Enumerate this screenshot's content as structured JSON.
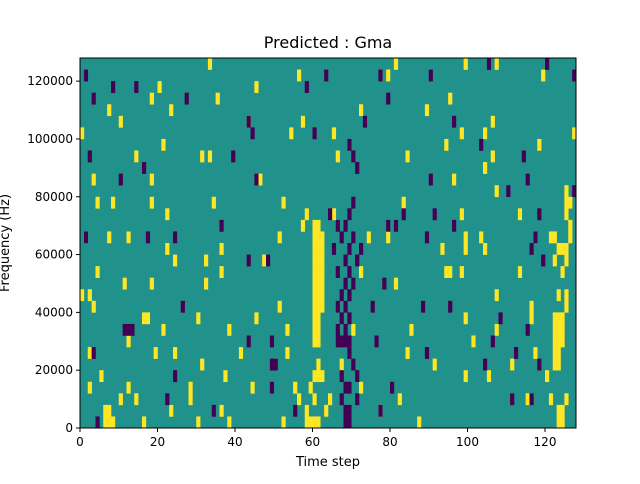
{
  "chart_data": {
    "type": "heatmap",
    "title": "Predicted : Gma",
    "xlabel": "Time step",
    "ylabel": "Frequency (Hz)",
    "xlim": [
      0,
      128
    ],
    "ylim": [
      0,
      128000
    ],
    "x_ticks": [
      0,
      20,
      40,
      60,
      80,
      100,
      120
    ],
    "x_tick_labels": [
      "0",
      "20",
      "40",
      "60",
      "80",
      "100",
      "120"
    ],
    "y_ticks": [
      0,
      20000,
      40000,
      60000,
      80000,
      100000,
      120000
    ],
    "y_tick_labels": [
      "0",
      "20000",
      "40000",
      "60000",
      "80000",
      "100000",
      "120000"
    ],
    "grid": false,
    "colormap": "viridis",
    "colors": {
      "background": "#21918c",
      "high": "#fde725",
      "low": "#440154"
    },
    "cell_height_hz": 4000,
    "high_cells": [
      {
        "t": 60,
        "f": 28000
      },
      {
        "t": 60,
        "f": 32000
      },
      {
        "t": 60,
        "f": 36000
      },
      {
        "t": 60,
        "f": 40000
      },
      {
        "t": 60,
        "f": 44000
      },
      {
        "t": 60,
        "f": 48000
      },
      {
        "t": 60,
        "f": 52000
      },
      {
        "t": 60,
        "f": 56000
      },
      {
        "t": 60,
        "f": 60000
      },
      {
        "t": 60,
        "f": 64000
      },
      {
        "t": 60,
        "f": 68000
      },
      {
        "t": 61,
        "f": 28000
      },
      {
        "t": 61,
        "f": 32000
      },
      {
        "t": 61,
        "f": 36000
      },
      {
        "t": 61,
        "f": 40000
      },
      {
        "t": 61,
        "f": 44000
      },
      {
        "t": 61,
        "f": 48000
      },
      {
        "t": 61,
        "f": 52000
      },
      {
        "t": 61,
        "f": 56000
      },
      {
        "t": 61,
        "f": 60000
      },
      {
        "t": 61,
        "f": 64000
      },
      {
        "t": 61,
        "f": 68000
      },
      {
        "t": 62,
        "f": 40000
      },
      {
        "t": 62,
        "f": 44000
      },
      {
        "t": 62,
        "f": 48000
      },
      {
        "t": 62,
        "f": 52000
      },
      {
        "t": 62,
        "f": 56000
      },
      {
        "t": 62,
        "f": 60000
      },
      {
        "t": 62,
        "f": 64000
      },
      {
        "t": 60,
        "f": 16000
      },
      {
        "t": 61,
        "f": 16000
      },
      {
        "t": 61,
        "f": 20000
      },
      {
        "t": 62,
        "f": 16000
      },
      {
        "t": 58,
        "f": 0
      },
      {
        "t": 59,
        "f": 0
      },
      {
        "t": 60,
        "f": 0
      },
      {
        "t": 61,
        "f": 0
      },
      {
        "t": 58,
        "f": 4000
      },
      {
        "t": 60,
        "f": 8000
      },
      {
        "t": 59,
        "f": 12000
      },
      {
        "t": 57,
        "f": 68000
      },
      {
        "t": 58,
        "f": 72000
      },
      {
        "t": 6,
        "f": 0
      },
      {
        "t": 7,
        "f": 0
      },
      {
        "t": 8,
        "f": 0
      },
      {
        "t": 6,
        "f": 4000
      },
      {
        "t": 7,
        "f": 4000
      },
      {
        "t": 2,
        "f": 24000
      },
      {
        "t": 3,
        "f": 40000
      },
      {
        "t": 0,
        "f": 44000
      },
      {
        "t": 2,
        "f": 44000
      },
      {
        "t": 5,
        "f": 16000
      },
      {
        "t": 4,
        "f": 52000
      },
      {
        "t": 1,
        "f": 64000
      },
      {
        "t": 7,
        "f": 64000
      },
      {
        "t": 4,
        "f": 76000
      },
      {
        "t": 8,
        "f": 76000
      },
      {
        "t": 0,
        "f": 100000
      },
      {
        "t": 7,
        "f": 108000
      },
      {
        "t": 3,
        "f": 84000
      },
      {
        "t": 2,
        "f": 12000
      },
      {
        "t": 10,
        "f": 8000
      },
      {
        "t": 12,
        "f": 12000
      },
      {
        "t": 14,
        "f": 8000
      },
      {
        "t": 16,
        "f": 0
      },
      {
        "t": 12,
        "f": 28000
      },
      {
        "t": 16,
        "f": 36000
      },
      {
        "t": 11,
        "f": 48000
      },
      {
        "t": 12,
        "f": 64000
      },
      {
        "t": 10,
        "f": 104000
      },
      {
        "t": 14,
        "f": 92000
      },
      {
        "t": 18,
        "f": 112000
      },
      {
        "t": 18,
        "f": 76000
      },
      {
        "t": 17,
        "f": 36000
      },
      {
        "t": 19,
        "f": 24000
      },
      {
        "t": 18,
        "f": 48000
      },
      {
        "t": 21,
        "f": 32000
      },
      {
        "t": 22,
        "f": 60000
      },
      {
        "t": 23,
        "f": 4000
      },
      {
        "t": 24,
        "f": 24000
      },
      {
        "t": 21,
        "f": 96000
      },
      {
        "t": 23,
        "f": 108000
      },
      {
        "t": 20,
        "f": 116000
      },
      {
        "t": 22,
        "f": 72000
      },
      {
        "t": 18,
        "f": 84000
      },
      {
        "t": 24,
        "f": 56000
      },
      {
        "t": 28,
        "f": 8000
      },
      {
        "t": 28,
        "f": 12000
      },
      {
        "t": 30,
        "f": 36000
      },
      {
        "t": 30,
        "f": 0
      },
      {
        "t": 31,
        "f": 20000
      },
      {
        "t": 32,
        "f": 48000
      },
      {
        "t": 32,
        "f": 56000
      },
      {
        "t": 33,
        "f": 92000
      },
      {
        "t": 35,
        "f": 112000
      },
      {
        "t": 33,
        "f": 124000
      },
      {
        "t": 34,
        "f": 76000
      },
      {
        "t": 36,
        "f": 4000
      },
      {
        "t": 37,
        "f": 16000
      },
      {
        "t": 38,
        "f": 0
      },
      {
        "t": 38,
        "f": 32000
      },
      {
        "t": 36,
        "f": 60000
      },
      {
        "t": 36,
        "f": 52000
      },
      {
        "t": 31,
        "f": 92000
      },
      {
        "t": 41,
        "f": 24000
      },
      {
        "t": 44,
        "f": 12000
      },
      {
        "t": 45,
        "f": 36000
      },
      {
        "t": 47,
        "f": 56000
      },
      {
        "t": 46,
        "f": 84000
      },
      {
        "t": 43,
        "f": 104000
      },
      {
        "t": 45,
        "f": 116000
      },
      {
        "t": 50,
        "f": 20000
      },
      {
        "t": 51,
        "f": 40000
      },
      {
        "t": 52,
        "f": 76000
      },
      {
        "t": 51,
        "f": 64000
      },
      {
        "t": 53,
        "f": 32000
      },
      {
        "t": 53,
        "f": 24000
      },
      {
        "t": 52,
        "f": 0
      },
      {
        "t": 56,
        "f": 8000
      },
      {
        "t": 55,
        "f": 12000
      },
      {
        "t": 56,
        "f": 120000
      },
      {
        "t": 54,
        "f": 100000
      },
      {
        "t": 57,
        "f": 104000
      },
      {
        "t": 64,
        "f": 8000
      },
      {
        "t": 63,
        "f": 4000
      },
      {
        "t": 65,
        "f": 72000
      },
      {
        "t": 67,
        "f": 20000
      },
      {
        "t": 70,
        "f": 32000
      },
      {
        "t": 72,
        "f": 12000
      },
      {
        "t": 72,
        "f": 52000
      },
      {
        "t": 72,
        "f": 108000
      },
      {
        "t": 65,
        "f": 100000
      },
      {
        "t": 66,
        "f": 92000
      },
      {
        "t": 74,
        "f": 64000
      },
      {
        "t": 77,
        "f": 4000
      },
      {
        "t": 79,
        "f": 64000
      },
      {
        "t": 82,
        "f": 8000
      },
      {
        "t": 85,
        "f": 32000
      },
      {
        "t": 81,
        "f": 48000
      },
      {
        "t": 84,
        "f": 24000
      },
      {
        "t": 83,
        "f": 76000
      },
      {
        "t": 84,
        "f": 92000
      },
      {
        "t": 81,
        "f": 124000
      },
      {
        "t": 79,
        "f": 120000
      },
      {
        "t": 87,
        "f": 0
      },
      {
        "t": 91,
        "f": 20000
      },
      {
        "t": 93,
        "f": 60000
      },
      {
        "t": 94,
        "f": 96000
      },
      {
        "t": 96,
        "f": 84000
      },
      {
        "t": 89,
        "f": 108000
      },
      {
        "t": 95,
        "f": 112000
      },
      {
        "t": 94,
        "f": 52000
      },
      {
        "t": 95,
        "f": 52000
      },
      {
        "t": 98,
        "f": 52000
      },
      {
        "t": 99,
        "f": 16000
      },
      {
        "t": 99,
        "f": 36000
      },
      {
        "t": 98,
        "f": 72000
      },
      {
        "t": 98,
        "f": 100000
      },
      {
        "t": 99,
        "f": 124000
      },
      {
        "t": 101,
        "f": 28000
      },
      {
        "t": 99,
        "f": 64000
      },
      {
        "t": 99,
        "f": 60000
      },
      {
        "t": 104,
        "f": 88000
      },
      {
        "t": 104,
        "f": 100000
      },
      {
        "t": 106,
        "f": 92000
      },
      {
        "t": 105,
        "f": 16000
      },
      {
        "t": 107,
        "f": 32000
      },
      {
        "t": 107,
        "f": 44000
      },
      {
        "t": 106,
        "f": 104000
      },
      {
        "t": 107,
        "f": 124000
      },
      {
        "t": 111,
        "f": 20000
      },
      {
        "t": 113,
        "f": 72000
      },
      {
        "t": 115,
        "f": 8000
      },
      {
        "t": 116,
        "f": 36000
      },
      {
        "t": 116,
        "f": 40000
      },
      {
        "t": 117,
        "f": 64000
      },
      {
        "t": 118,
        "f": 96000
      },
      {
        "t": 119,
        "f": 120000
      },
      {
        "t": 117,
        "f": 24000
      },
      {
        "t": 120,
        "f": 16000
      },
      {
        "t": 121,
        "f": 8000
      },
      {
        "t": 123,
        "f": 0
      },
      {
        "t": 123,
        "f": 4000
      },
      {
        "t": 124,
        "f": 0
      },
      {
        "t": 124,
        "f": 4000
      },
      {
        "t": 125,
        "f": 8000
      },
      {
        "t": 122,
        "f": 20000
      },
      {
        "t": 123,
        "f": 20000
      },
      {
        "t": 122,
        "f": 24000
      },
      {
        "t": 123,
        "f": 24000
      },
      {
        "t": 122,
        "f": 28000
      },
      {
        "t": 123,
        "f": 28000
      },
      {
        "t": 124,
        "f": 28000
      },
      {
        "t": 122,
        "f": 32000
      },
      {
        "t": 123,
        "f": 32000
      },
      {
        "t": 124,
        "f": 32000
      },
      {
        "t": 122,
        "f": 36000
      },
      {
        "t": 123,
        "f": 36000
      },
      {
        "t": 124,
        "f": 36000
      },
      {
        "t": 125,
        "f": 40000
      },
      {
        "t": 125,
        "f": 44000
      },
      {
        "t": 123,
        "f": 44000
      },
      {
        "t": 124,
        "f": 52000
      },
      {
        "t": 122,
        "f": 56000
      },
      {
        "t": 125,
        "f": 56000
      },
      {
        "t": 123,
        "f": 60000
      },
      {
        "t": 124,
        "f": 60000
      },
      {
        "t": 125,
        "f": 60000
      },
      {
        "t": 121,
        "f": 64000
      },
      {
        "t": 122,
        "f": 64000
      },
      {
        "t": 126,
        "f": 64000
      },
      {
        "t": 126,
        "f": 68000
      },
      {
        "t": 125,
        "f": 72000
      },
      {
        "t": 125,
        "f": 76000
      },
      {
        "t": 125,
        "f": 80000
      },
      {
        "t": 126,
        "f": 76000
      },
      {
        "t": 127,
        "f": 100000
      },
      {
        "t": 104,
        "f": 60000
      },
      {
        "t": 103,
        "f": 64000
      },
      {
        "t": 107,
        "f": 80000
      },
      {
        "t": 113,
        "f": 52000
      }
    ],
    "low_cells": [
      {
        "t": 66,
        "f": 28000
      },
      {
        "t": 67,
        "f": 28000
      },
      {
        "t": 68,
        "f": 28000
      },
      {
        "t": 69,
        "f": 28000
      },
      {
        "t": 66,
        "f": 32000
      },
      {
        "t": 68,
        "f": 32000
      },
      {
        "t": 67,
        "f": 36000
      },
      {
        "t": 69,
        "f": 36000
      },
      {
        "t": 66,
        "f": 40000
      },
      {
        "t": 68,
        "f": 40000
      },
      {
        "t": 67,
        "f": 44000
      },
      {
        "t": 69,
        "f": 44000
      },
      {
        "t": 68,
        "f": 48000
      },
      {
        "t": 70,
        "f": 48000
      },
      {
        "t": 66,
        "f": 52000
      },
      {
        "t": 69,
        "f": 52000
      },
      {
        "t": 68,
        "f": 56000
      },
      {
        "t": 71,
        "f": 56000
      },
      {
        "t": 65,
        "f": 60000
      },
      {
        "t": 69,
        "f": 60000
      },
      {
        "t": 72,
        "f": 60000
      },
      {
        "t": 67,
        "f": 64000
      },
      {
        "t": 70,
        "f": 64000
      },
      {
        "t": 66,
        "f": 68000
      },
      {
        "t": 68,
        "f": 68000
      },
      {
        "t": 69,
        "f": 72000
      },
      {
        "t": 70,
        "f": 76000
      },
      {
        "t": 68,
        "f": 12000
      },
      {
        "t": 69,
        "f": 12000
      },
      {
        "t": 67,
        "f": 8000
      },
      {
        "t": 68,
        "f": 4000
      },
      {
        "t": 69,
        "f": 4000
      },
      {
        "t": 68,
        "f": 0
      },
      {
        "t": 69,
        "f": 0
      },
      {
        "t": 67,
        "f": 16000
      },
      {
        "t": 70,
        "f": 20000
      },
      {
        "t": 69,
        "f": 24000
      },
      {
        "t": 71,
        "f": 8000
      },
      {
        "t": 71,
        "f": 16000
      },
      {
        "t": 70,
        "f": 92000
      },
      {
        "t": 71,
        "f": 88000
      },
      {
        "t": 69,
        "f": 96000
      },
      {
        "t": 73,
        "f": 104000
      },
      {
        "t": 4,
        "f": 0
      },
      {
        "t": 3,
        "f": 24000
      },
      {
        "t": 1,
        "f": 64000
      },
      {
        "t": 1,
        "f": 120000
      },
      {
        "t": 3,
        "f": 112000
      },
      {
        "t": 2,
        "f": 92000
      },
      {
        "t": 12,
        "f": 32000
      },
      {
        "t": 13,
        "f": 32000
      },
      {
        "t": 11,
        "f": 32000
      },
      {
        "t": 8,
        "f": 116000
      },
      {
        "t": 10,
        "f": 84000
      },
      {
        "t": 14,
        "f": 116000
      },
      {
        "t": 17,
        "f": 64000
      },
      {
        "t": 16,
        "f": 88000
      },
      {
        "t": 22,
        "f": 8000
      },
      {
        "t": 24,
        "f": 16000
      },
      {
        "t": 26,
        "f": 40000
      },
      {
        "t": 27,
        "f": 112000
      },
      {
        "t": 24,
        "f": 64000
      },
      {
        "t": 36,
        "f": 68000
      },
      {
        "t": 34,
        "f": 4000
      },
      {
        "t": 39,
        "f": 92000
      },
      {
        "t": 43,
        "f": 28000
      },
      {
        "t": 43,
        "f": 56000
      },
      {
        "t": 45,
        "f": 84000
      },
      {
        "t": 44,
        "f": 100000
      },
      {
        "t": 43,
        "f": 104000
      },
      {
        "t": 48,
        "f": 56000
      },
      {
        "t": 49,
        "f": 28000
      },
      {
        "t": 49,
        "f": 12000
      },
      {
        "t": 49,
        "f": 20000
      },
      {
        "t": 50,
        "f": 20000
      },
      {
        "t": 55,
        "f": 4000
      },
      {
        "t": 58,
        "f": 116000
      },
      {
        "t": 60,
        "f": 100000
      },
      {
        "t": 63,
        "f": 120000
      },
      {
        "t": 64,
        "f": 72000
      },
      {
        "t": 79,
        "f": 68000
      },
      {
        "t": 78,
        "f": 48000
      },
      {
        "t": 76,
        "f": 28000
      },
      {
        "t": 75,
        "f": 40000
      },
      {
        "t": 77,
        "f": 120000
      },
      {
        "t": 79,
        "f": 112000
      },
      {
        "t": 77,
        "f": 4000
      },
      {
        "t": 80,
        "f": 12000
      },
      {
        "t": 81,
        "f": 68000
      },
      {
        "t": 83,
        "f": 72000
      },
      {
        "t": 89,
        "f": 24000
      },
      {
        "t": 88,
        "f": 40000
      },
      {
        "t": 89,
        "f": 64000
      },
      {
        "t": 90,
        "f": 120000
      },
      {
        "t": 90,
        "f": 84000
      },
      {
        "t": 91,
        "f": 72000
      },
      {
        "t": 95,
        "f": 40000
      },
      {
        "t": 96,
        "f": 68000
      },
      {
        "t": 96,
        "f": 104000
      },
      {
        "t": 103,
        "f": 96000
      },
      {
        "t": 105,
        "f": 124000
      },
      {
        "t": 104,
        "f": 20000
      },
      {
        "t": 106,
        "f": 28000
      },
      {
        "t": 108,
        "f": 36000
      },
      {
        "t": 111,
        "f": 8000
      },
      {
        "t": 112,
        "f": 24000
      },
      {
        "t": 115,
        "f": 32000
      },
      {
        "t": 110,
        "f": 80000
      },
      {
        "t": 115,
        "f": 84000
      },
      {
        "t": 114,
        "f": 92000
      },
      {
        "t": 116,
        "f": 60000
      },
      {
        "t": 116,
        "f": 8000
      },
      {
        "t": 118,
        "f": 20000
      },
      {
        "t": 117,
        "f": 64000
      },
      {
        "t": 118,
        "f": 72000
      },
      {
        "t": 120,
        "f": 124000
      },
      {
        "t": 119,
        "f": 56000
      },
      {
        "t": 127,
        "f": 80000
      },
      {
        "t": 127,
        "f": 120000
      }
    ]
  }
}
